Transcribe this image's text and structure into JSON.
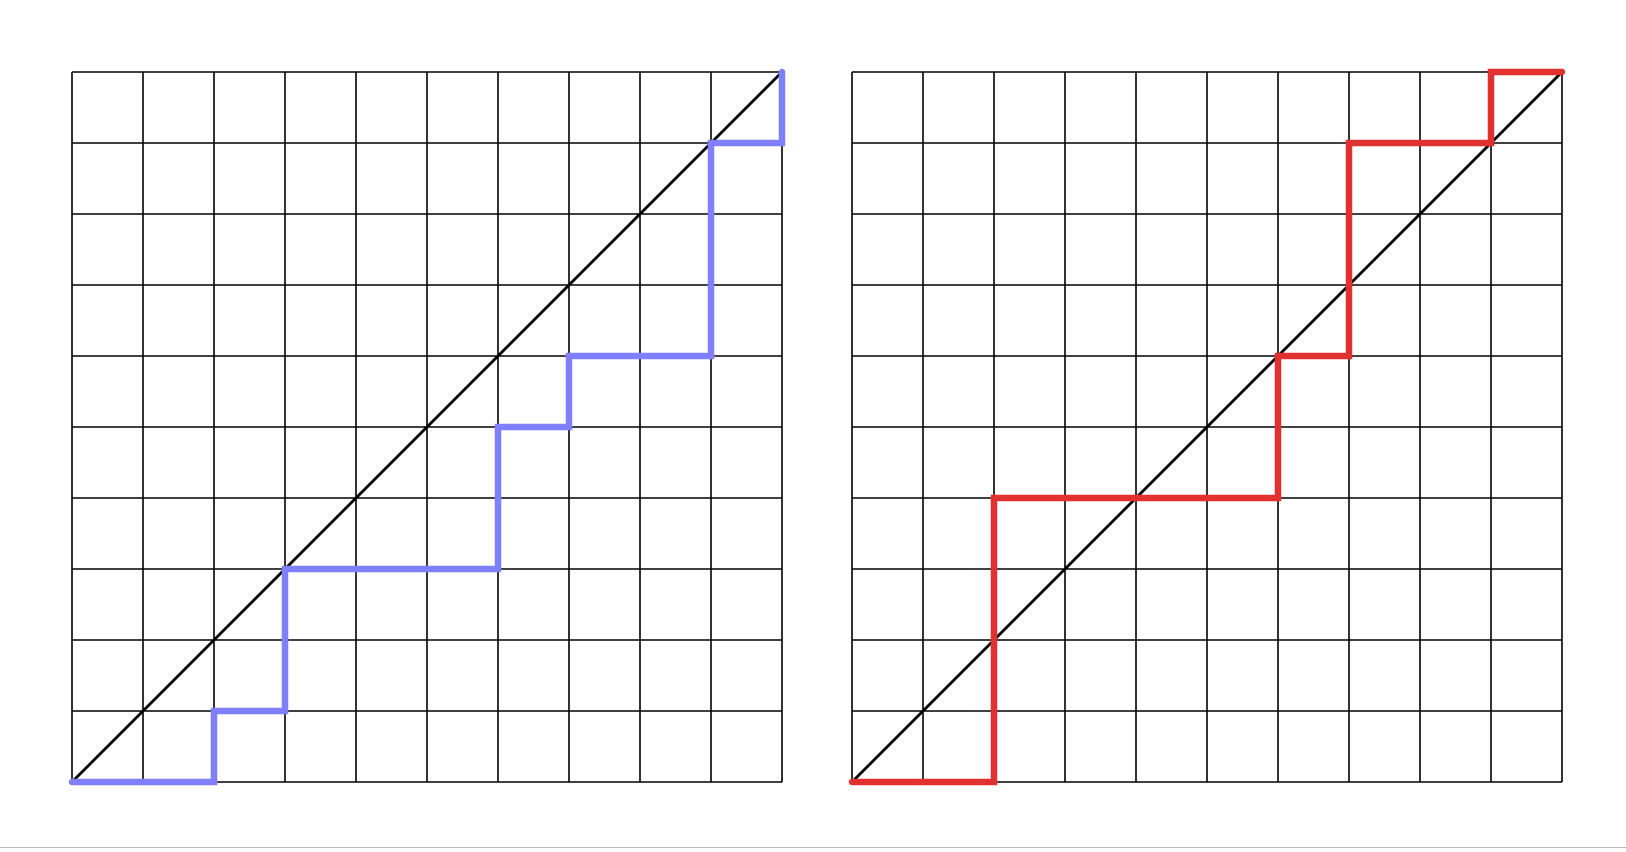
{
  "diagram": {
    "grid_size": 10,
    "grid_color": "#000000",
    "diagonal_color": "#000000",
    "panels": [
      {
        "name": "left",
        "path_color": "#8080ff",
        "path": [
          [
            0,
            0
          ],
          [
            2,
            0
          ],
          [
            2,
            1
          ],
          [
            3,
            1
          ],
          [
            3,
            3
          ],
          [
            6,
            3
          ],
          [
            6,
            5
          ],
          [
            7,
            5
          ],
          [
            7,
            6
          ],
          [
            9,
            6
          ],
          [
            9,
            9
          ],
          [
            10,
            9
          ],
          [
            10,
            10
          ]
        ]
      },
      {
        "name": "right",
        "path_color": "#e03030",
        "path": [
          [
            0,
            0
          ],
          [
            2,
            0
          ],
          [
            2,
            4
          ],
          [
            6,
            4
          ],
          [
            6,
            6
          ],
          [
            7,
            6
          ],
          [
            7,
            9
          ],
          [
            9,
            9
          ],
          [
            9,
            10
          ],
          [
            10,
            10
          ]
        ]
      }
    ]
  }
}
